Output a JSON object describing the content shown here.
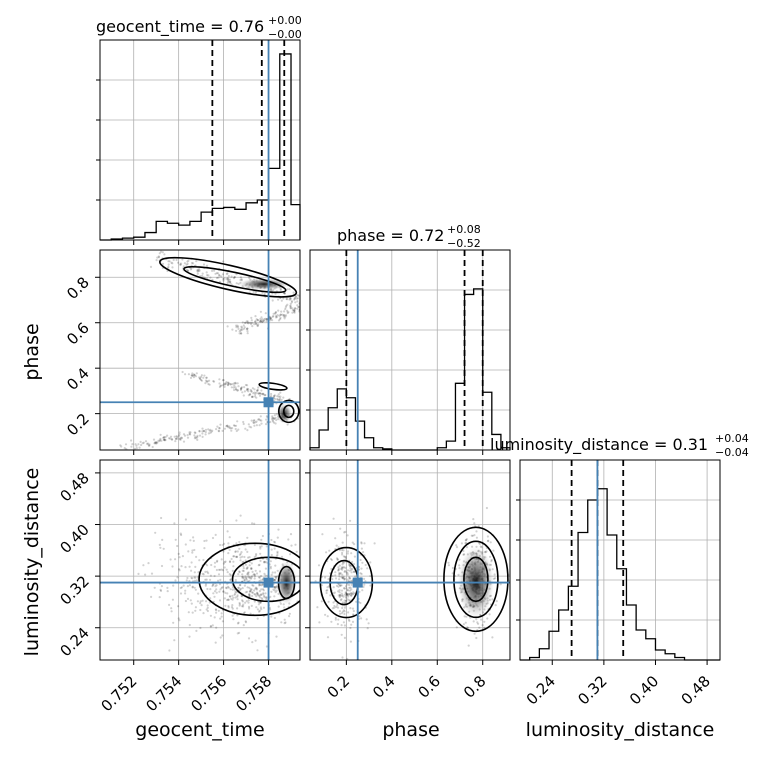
{
  "chart_data": {
    "type": "corner",
    "parameters": [
      "geocent_time",
      "phase",
      "luminosity_distance"
    ],
    "truth": {
      "geocent_time": 0.758,
      "phase": 0.25,
      "luminosity_distance": 0.31
    },
    "truth_color": "#4682b4",
    "grid": true,
    "ranges": {
      "geocent_time": [
        0.7505,
        0.7594
      ],
      "phase": [
        0.04,
        0.92
      ],
      "luminosity_distance": [
        0.19,
        0.5
      ]
    },
    "titles": [
      {
        "param": "geocent_time",
        "text": "geocent_time = 0.76",
        "plus": "+0.00",
        "minus": "−0.00"
      },
      {
        "param": "phase",
        "text": "phase = 0.72",
        "plus": "+0.08",
        "minus": "−0.52"
      },
      {
        "param": "luminosity_distance",
        "text": "luminosity_distance = 0.31",
        "plus": "+0.04",
        "minus": "−0.04"
      }
    ],
    "quantile_lines": {
      "geocent_time": [
        0.7555,
        0.7577,
        0.7587
      ],
      "phase": [
        0.2,
        0.72,
        0.8
      ],
      "luminosity_distance": [
        0.27,
        0.31,
        0.35
      ]
    },
    "ticks": {
      "geocent_time": {
        "values": [
          0.752,
          0.754,
          0.756,
          0.758
        ],
        "labels": [
          "0.752",
          "0.754",
          "0.756",
          "0.758"
        ]
      },
      "phase": {
        "values": [
          0.2,
          0.4,
          0.6,
          0.8
        ],
        "labels": [
          "0.2",
          "0.4",
          "0.6",
          "0.8"
        ]
      },
      "luminosity_distance": {
        "values": [
          0.24,
          0.32,
          0.4,
          0.48
        ],
        "labels": [
          "0.24",
          "0.32",
          "0.40",
          "0.48"
        ]
      }
    },
    "histograms": {
      "geocent_time": {
        "bin_edges": [
          0.7505,
          0.751,
          0.7515,
          0.752,
          0.7525,
          0.753,
          0.7535,
          0.754,
          0.7545,
          0.755,
          0.7555,
          0.756,
          0.7565,
          0.757,
          0.7575,
          0.758,
          0.7585,
          0.759,
          0.7594
        ],
        "counts": [
          0,
          1,
          2,
          3,
          8,
          20,
          18,
          16,
          20,
          30,
          34,
          35,
          33,
          40,
          43,
          77,
          200,
          38
        ],
        "ymax": 215
      },
      "phase": {
        "bin_edges": [
          0.04,
          0.08,
          0.12,
          0.16,
          0.2,
          0.24,
          0.28,
          0.32,
          0.36,
          0.4,
          0.44,
          0.48,
          0.52,
          0.56,
          0.6,
          0.64,
          0.68,
          0.72,
          0.76,
          0.8,
          0.84,
          0.88,
          0.92
        ],
        "counts": [
          2,
          18,
          38,
          55,
          47,
          26,
          11,
          2,
          1,
          0,
          0,
          0,
          0,
          0,
          2,
          8,
          60,
          140,
          145,
          52,
          14,
          2
        ],
        "ymax": 180
      },
      "luminosity_distance": {
        "bin_edges": [
          0.19,
          0.205,
          0.22,
          0.235,
          0.25,
          0.265,
          0.28,
          0.295,
          0.31,
          0.325,
          0.34,
          0.355,
          0.37,
          0.385,
          0.4,
          0.415,
          0.43,
          0.445,
          0.46,
          0.475,
          0.49,
          0.5
        ],
        "counts": [
          0,
          2,
          9,
          23,
          40,
          59,
          102,
          128,
          137,
          100,
          73,
          44,
          24,
          17,
          8,
          5,
          2,
          0,
          0,
          0,
          0
        ],
        "ymax": 160
      }
    },
    "axis_labels": {
      "x": [
        "geocent_time",
        "phase",
        "luminosity_distance"
      ],
      "y": [
        "phase",
        "luminosity_distance"
      ]
    }
  }
}
